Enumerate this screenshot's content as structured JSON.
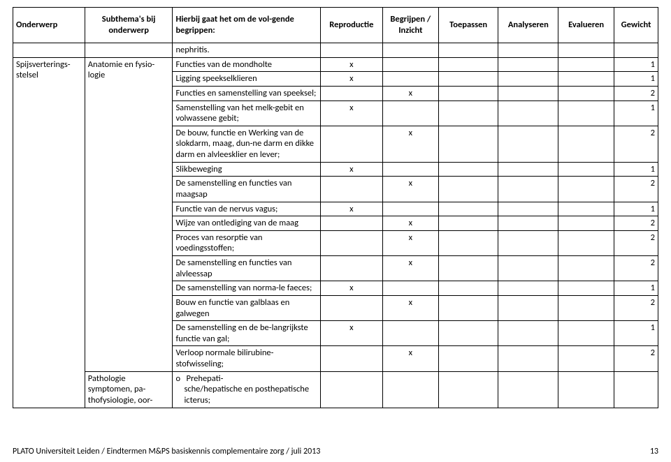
{
  "headers": {
    "onderwerp": "Onderwerp",
    "subthema": "Subthema's bij onderwerp",
    "begrippen": "Hierbij gaat het om de vol-gende begrippen:",
    "reproductie": "Reproductie",
    "begrijpen": "Begrijpen / Inzicht",
    "toepassen": "Toepassen",
    "analyseren": "Analyseren",
    "evalueren": "Evalueren",
    "gewicht": "Gewicht"
  },
  "topic": "Spijsverterings-stelsel",
  "sub1": "Anatomie en fysio-logie",
  "sub2_a": "Pathologie",
  "sub2_b": "symptomen, pa-thofysiologie, oor-",
  "rows": [
    {
      "txt": "nephritis.",
      "r": "",
      "b": "",
      "t": "",
      "a": "",
      "e": "",
      "g": ""
    },
    {
      "txt": "Functies van de mondholte",
      "r": "x",
      "b": "",
      "t": "",
      "a": "",
      "e": "",
      "g": "1"
    },
    {
      "txt": "Ligging speekselklieren",
      "r": "x",
      "b": "",
      "t": "",
      "a": "",
      "e": "",
      "g": "1"
    },
    {
      "txt": "Functies en samenstelling van speeksel;",
      "r": "",
      "b": "x",
      "t": "",
      "a": "",
      "e": "",
      "g": "2"
    },
    {
      "txt": "Samenstelling van het melk-gebit en volwassene gebit;",
      "r": "x",
      "b": "",
      "t": "",
      "a": "",
      "e": "",
      "g": "1"
    },
    {
      "txt": "De bouw, functie en Werking van de slokdarm, maag, dun-ne darm en dikke darm en alvleesklier en lever;",
      "r": "",
      "b": "x",
      "t": "",
      "a": "",
      "e": "",
      "g": "2"
    },
    {
      "txt": "Slikbeweging",
      "r": "x",
      "b": "",
      "t": "",
      "a": "",
      "e": "",
      "g": "1"
    },
    {
      "txt": "De samenstelling en functies van maagsap",
      "r": "",
      "b": "x",
      "t": "",
      "a": "",
      "e": "",
      "g": "2"
    },
    {
      "txt": "Functie van de nervus vagus;",
      "r": "x",
      "b": "",
      "t": "",
      "a": "",
      "e": "",
      "g": "1"
    },
    {
      "txt": "Wijze van ontlediging van de maag",
      "r": "",
      "b": "x",
      "t": "",
      "a": "",
      "e": "",
      "g": "2"
    },
    {
      "txt": "Proces van resorptie van voedingsstoffen;",
      "r": "",
      "b": "x",
      "t": "",
      "a": "",
      "e": "",
      "g": "2"
    },
    {
      "txt": "De samenstelling en functies van alvleessap",
      "r": "",
      "b": "x",
      "t": "",
      "a": "",
      "e": "",
      "g": "2"
    },
    {
      "txt": "De samenstelling van norma-le faeces;",
      "r": "x",
      "b": "",
      "t": "",
      "a": "",
      "e": "",
      "g": "1"
    },
    {
      "txt": "Bouw en functie van galblaas en galwegen",
      "r": "",
      "b": "x",
      "t": "",
      "a": "",
      "e": "",
      "g": "2"
    },
    {
      "txt": "De samenstelling en de be-langrijkste functie van gal;",
      "r": "x",
      "b": "",
      "t": "",
      "a": "",
      "e": "",
      "g": "1"
    },
    {
      "txt": "Verloop normale bilirubine-stofwisseling;",
      "r": "",
      "b": "x",
      "t": "",
      "a": "",
      "e": "",
      "g": "2"
    },
    {
      "txt": "o   Prehepati-sche/hepatische en posthepatische icterus;",
      "r": "",
      "b": "",
      "t": "",
      "a": "",
      "e": "",
      "g": ""
    }
  ],
  "footer_text": "PLATO Universiteit Leiden / Eindtermen M&PS basiskennis complementaire zorg / juli 2013",
  "page_num": "13"
}
